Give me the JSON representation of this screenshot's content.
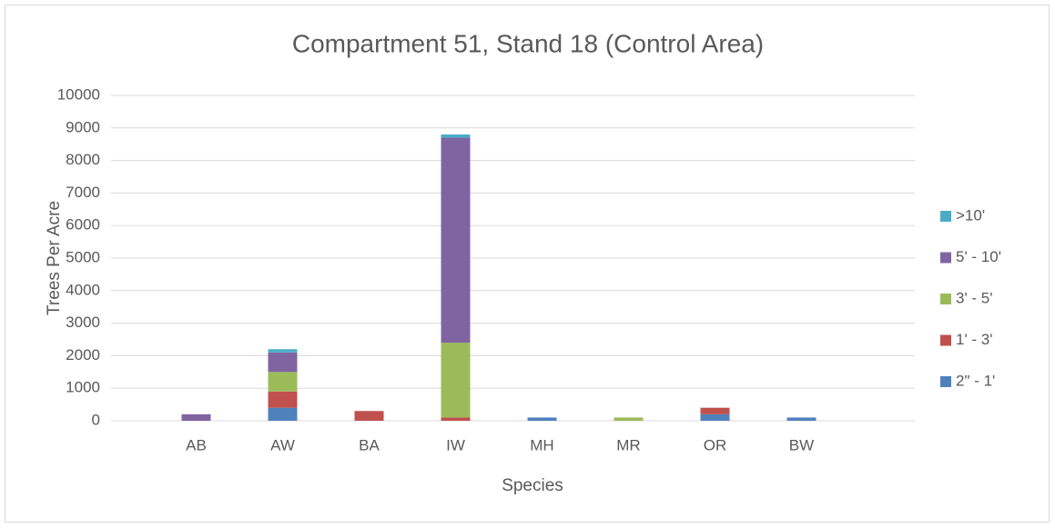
{
  "chart_data": {
    "type": "stacked_bar",
    "title": "Compartment 51, Stand 18 (Control Area)",
    "x_label": "Species",
    "y_label": "Trees Per Acre",
    "categories": [
      "AB",
      "AW",
      "BA",
      "IW",
      "MH",
      "MR",
      "OR",
      "BW"
    ],
    "series": [
      {
        "name": "2\" - 1'",
        "color": "#4f81bd",
        "values": [
          0,
          400,
          0,
          0,
          100,
          0,
          200,
          100
        ]
      },
      {
        "name": "1' - 3'",
        "color": "#c0504d",
        "values": [
          0,
          500,
          300,
          100,
          0,
          0,
          200,
          0
        ]
      },
      {
        "name": "3' - 5'",
        "color": "#9bbb59",
        "values": [
          0,
          600,
          0,
          2300,
          0,
          100,
          0,
          0
        ]
      },
      {
        "name": "5' - 10'",
        "color": "#8064a2",
        "values": [
          200,
          600,
          0,
          6300,
          0,
          0,
          0,
          0
        ]
      },
      {
        "name": ">10'",
        "color": "#4bacc6",
        "values": [
          0,
          100,
          0,
          100,
          0,
          0,
          0,
          0
        ]
      }
    ],
    "ylim": [
      0,
      10000
    ],
    "yticks": [
      0,
      1000,
      2000,
      3000,
      4000,
      5000,
      6000,
      7000,
      8000,
      9000,
      10000
    ],
    "grid": true,
    "legend": "right"
  }
}
